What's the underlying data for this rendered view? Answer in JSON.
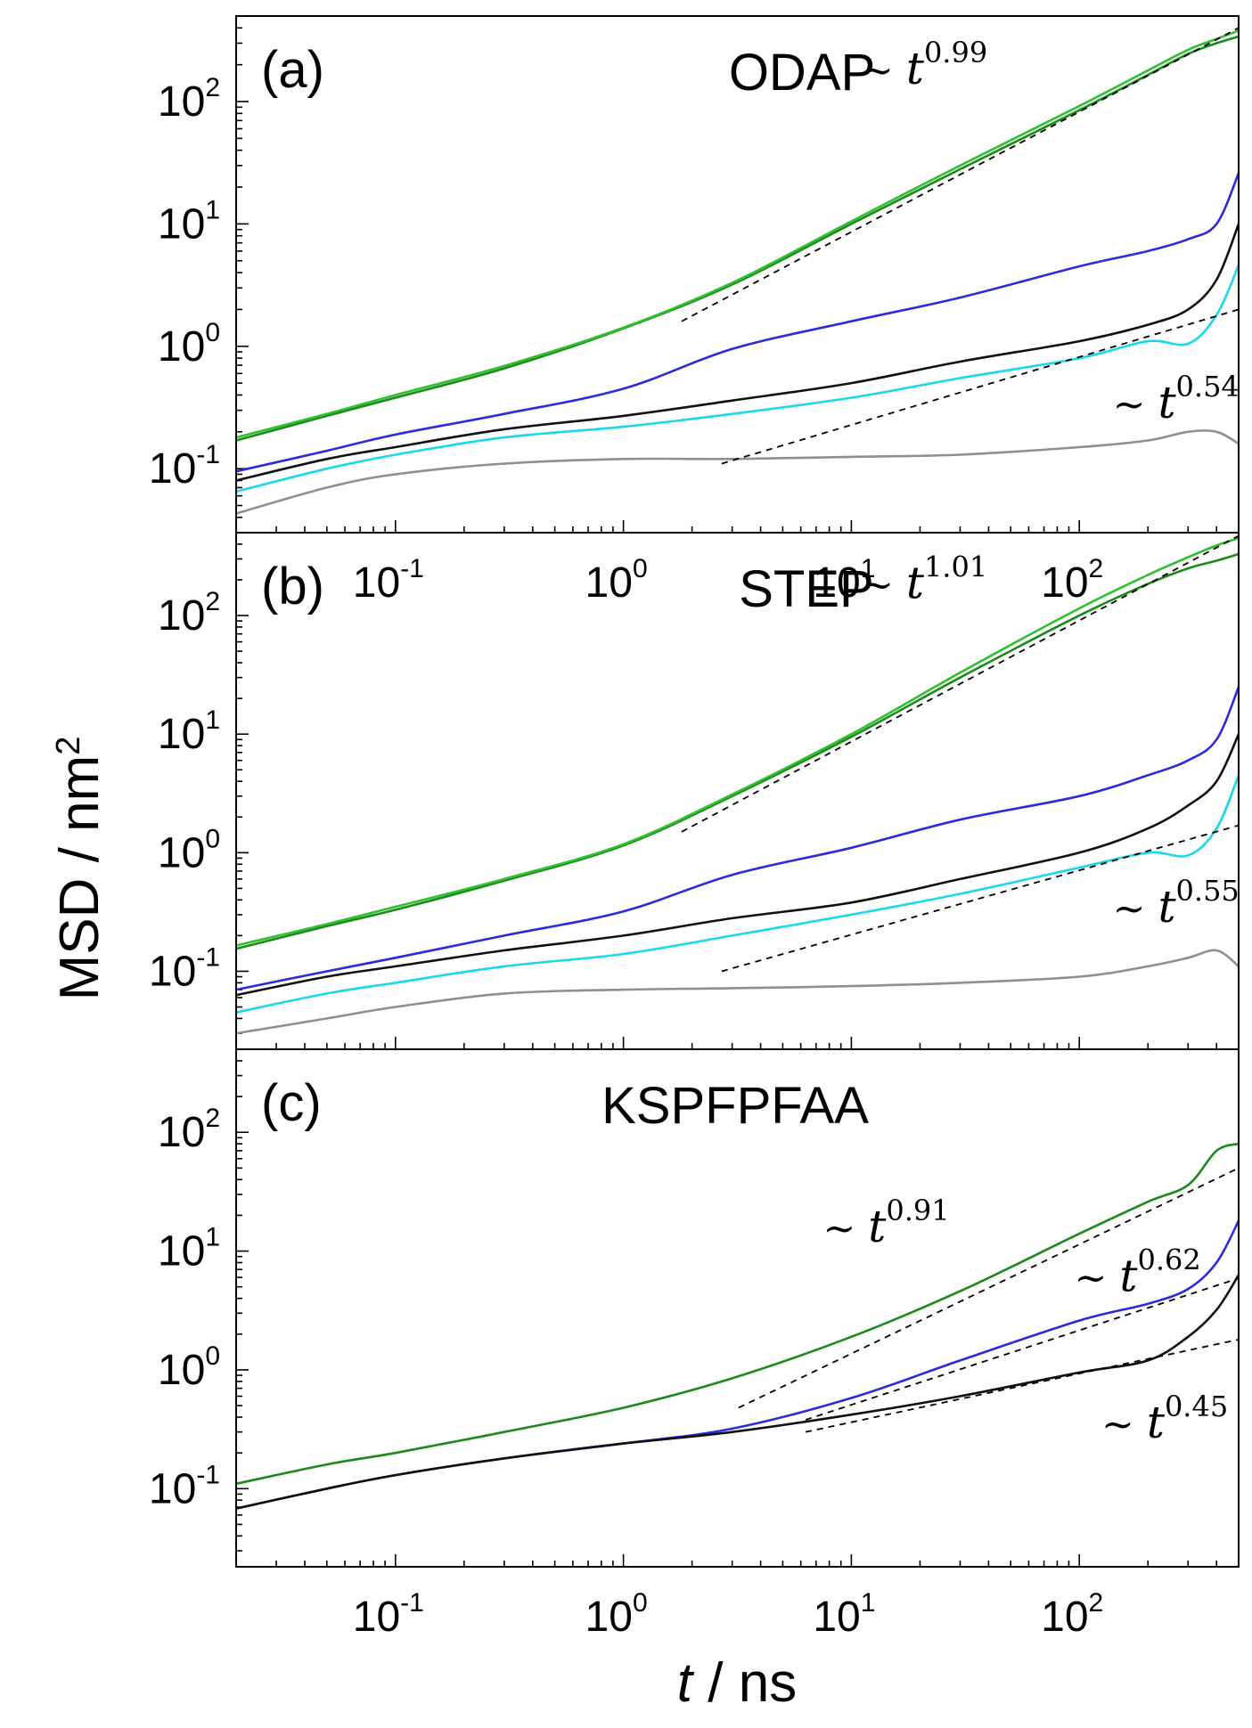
{
  "figure": {
    "x_axis_title_italic": "t",
    "x_axis_title_rest": " / ns",
    "y_axis_title": "MSD / nm",
    "y_axis_title_sup": "2"
  },
  "colors": {
    "green": "#1a8a1a",
    "light_green": "#2fc02f",
    "blue": "#2b2bdd",
    "black": "#111111",
    "cyan": "#19d8e8",
    "gray": "#8f8f8f"
  },
  "chart_data": [
    {
      "type": "line",
      "panel_tag": "(a)",
      "title": "ODAP",
      "xscale": "log",
      "yscale": "log",
      "xlim": [
        0.02,
        500
      ],
      "ylim": [
        0.03,
        500
      ],
      "x_ticks": [
        {
          "base": "10",
          "exp": "-1"
        },
        {
          "base": "10",
          "exp": "0"
        },
        {
          "base": "10",
          "exp": "1"
        },
        {
          "base": "10",
          "exp": "2"
        }
      ],
      "y_ticks": [
        {
          "base": "10",
          "exp": "-1"
        },
        {
          "base": "10",
          "exp": "0"
        },
        {
          "base": "10",
          "exp": "1"
        },
        {
          "base": "10",
          "exp": "2"
        }
      ],
      "x": [
        0.02,
        0.05,
        0.1,
        0.3,
        1,
        3,
        10,
        30,
        100,
        200,
        300,
        400,
        500
      ],
      "series": [
        {
          "name": "green",
          "color": "#1a8a1a",
          "values": [
            0.17,
            0.27,
            0.38,
            0.66,
            1.4,
            3.2,
            10,
            28,
            85,
            165,
            245,
            300,
            340
          ]
        },
        {
          "name": "light green",
          "color": "#2fc02f",
          "values": [
            0.18,
            0.28,
            0.4,
            0.69,
            1.42,
            3.3,
            10.5,
            30,
            92,
            180,
            265,
            325,
            380
          ]
        },
        {
          "name": "blue",
          "color": "#2b2bdd",
          "values": [
            0.095,
            0.14,
            0.19,
            0.28,
            0.45,
            0.95,
            1.6,
            2.5,
            4.5,
            6,
            7.5,
            10,
            26
          ]
        },
        {
          "name": "black",
          "color": "#111111",
          "values": [
            0.08,
            0.12,
            0.15,
            0.21,
            0.27,
            0.36,
            0.5,
            0.75,
            1.1,
            1.5,
            2,
            3.5,
            10
          ]
        },
        {
          "name": "cyan",
          "color": "#19d8e8",
          "values": [
            0.065,
            0.1,
            0.13,
            0.18,
            0.22,
            0.28,
            0.38,
            0.55,
            0.8,
            1.1,
            1.05,
            1.8,
            4.6
          ]
        },
        {
          "name": "gray",
          "color": "#8f8f8f",
          "values": [
            0.043,
            0.07,
            0.09,
            0.11,
            0.12,
            0.12,
            0.125,
            0.13,
            0.15,
            0.17,
            0.2,
            0.2,
            0.16
          ]
        }
      ],
      "fits": [
        {
          "label_exp": "0.99",
          "x": [
            1.8,
            500
          ],
          "y": [
            1.6,
            400
          ]
        },
        {
          "label_exp": "0.54",
          "x": [
            2.7,
            500
          ],
          "y": [
            0.11,
            2.0
          ]
        }
      ],
      "annotations": [
        {
          "tilde": "~",
          "symbol": "t",
          "exp": "0.99",
          "at": [
            11,
            140
          ]
        },
        {
          "tilde": "~",
          "symbol": "t",
          "exp": "0.54",
          "at": [
            140,
            0.26
          ]
        }
      ]
    },
    {
      "type": "line",
      "panel_tag": "(b)",
      "title": "STEP",
      "xscale": "log",
      "yscale": "log",
      "xlim": [
        0.02,
        500
      ],
      "ylim": [
        0.022,
        500
      ],
      "x_ticks": [],
      "y_ticks": [
        {
          "base": "10",
          "exp": "-1"
        },
        {
          "base": "10",
          "exp": "0"
        },
        {
          "base": "10",
          "exp": "1"
        },
        {
          "base": "10",
          "exp": "2"
        }
      ],
      "x": [
        0.02,
        0.05,
        0.1,
        0.3,
        1,
        3,
        10,
        30,
        100,
        200,
        300,
        400,
        500
      ],
      "series": [
        {
          "name": "green",
          "color": "#1a8a1a",
          "values": [
            0.155,
            0.24,
            0.33,
            0.58,
            1.15,
            3,
            9.5,
            30,
            100,
            185,
            250,
            290,
            330
          ]
        },
        {
          "name": "light green",
          "color": "#2fc02f",
          "values": [
            0.165,
            0.25,
            0.35,
            0.6,
            1.18,
            3.1,
            10,
            33,
            115,
            220,
            310,
            390,
            450
          ]
        },
        {
          "name": "blue",
          "color": "#2b2bdd",
          "values": [
            0.07,
            0.1,
            0.13,
            0.2,
            0.32,
            0.65,
            1.1,
            1.9,
            3,
            4.5,
            6,
            9,
            25
          ]
        },
        {
          "name": "black",
          "color": "#111111",
          "values": [
            0.063,
            0.09,
            0.11,
            0.15,
            0.2,
            0.28,
            0.38,
            0.6,
            1,
            1.6,
            2.5,
            4,
            10
          ]
        },
        {
          "name": "cyan",
          "color": "#19d8e8",
          "values": [
            0.045,
            0.065,
            0.08,
            0.11,
            0.14,
            0.2,
            0.3,
            0.45,
            0.75,
            1.0,
            0.95,
            1.6,
            4.5
          ]
        },
        {
          "name": "gray",
          "color": "#8f8f8f",
          "values": [
            0.03,
            0.04,
            0.05,
            0.065,
            0.07,
            0.072,
            0.075,
            0.08,
            0.09,
            0.11,
            0.13,
            0.15,
            0.11
          ]
        }
      ],
      "fits": [
        {
          "label_exp": "1.01",
          "x": [
            1.8,
            500
          ],
          "y": [
            1.5,
            470
          ]
        },
        {
          "label_exp": "0.55",
          "x": [
            2.7,
            500
          ],
          "y": [
            0.1,
            1.7
          ]
        }
      ],
      "annotations": [
        {
          "tilde": "~",
          "symbol": "t",
          "exp": "1.01",
          "at": [
            11,
            140
          ]
        },
        {
          "tilde": "~",
          "symbol": "t",
          "exp": "0.55",
          "at": [
            140,
            0.26
          ]
        }
      ]
    },
    {
      "type": "line",
      "panel_tag": "(c)",
      "title": "KSPFPFAA",
      "xscale": "log",
      "yscale": "log",
      "xlim": [
        0.02,
        500
      ],
      "ylim": [
        0.022,
        500
      ],
      "x_ticks": [
        {
          "base": "10",
          "exp": "-1"
        },
        {
          "base": "10",
          "exp": "0"
        },
        {
          "base": "10",
          "exp": "1"
        },
        {
          "base": "10",
          "exp": "2"
        }
      ],
      "y_ticks": [
        {
          "base": "10",
          "exp": "-1"
        },
        {
          "base": "10",
          "exp": "0"
        },
        {
          "base": "10",
          "exp": "1"
        },
        {
          "base": "10",
          "exp": "2"
        }
      ],
      "x": [
        0.02,
        0.05,
        0.1,
        0.3,
        1,
        3,
        10,
        30,
        100,
        200,
        300,
        400,
        500
      ],
      "series": [
        {
          "name": "green",
          "color": "#1a8a1a",
          "values": [
            0.11,
            0.16,
            0.2,
            0.3,
            0.48,
            0.85,
            1.9,
            4.6,
            14,
            26,
            36,
            70,
            80
          ]
        },
        {
          "name": "blue",
          "color": "#2b2bdd",
          "values": [
            0.068,
            0.1,
            0.13,
            0.18,
            0.24,
            0.32,
            0.58,
            1.2,
            2.6,
            3.6,
            4.8,
            8,
            18
          ]
        },
        {
          "name": "black",
          "color": "#111111",
          "values": [
            0.068,
            0.1,
            0.13,
            0.18,
            0.24,
            0.3,
            0.42,
            0.6,
            0.95,
            1.2,
            1.9,
            3.2,
            6.3
          ]
        }
      ],
      "fits": [
        {
          "label_exp": "0.91",
          "x": [
            3.2,
            500
          ],
          "y": [
            0.48,
            50
          ]
        },
        {
          "label_exp": "0.62",
          "x": [
            6.3,
            500
          ],
          "y": [
            0.38,
            5.9
          ]
        },
        {
          "label_exp": "0.45",
          "x": [
            6.3,
            500
          ],
          "y": [
            0.3,
            1.8
          ]
        }
      ],
      "annotations": [
        {
          "tilde": "~",
          "symbol": "t",
          "exp": "0.91",
          "at": [
            7.5,
            12
          ]
        },
        {
          "tilde": "~",
          "symbol": "t",
          "exp": "0.62",
          "at": [
            95,
            4.6
          ]
        },
        {
          "tilde": "~",
          "symbol": "t",
          "exp": "0.45",
          "at": [
            125,
            0.27
          ]
        }
      ]
    }
  ]
}
